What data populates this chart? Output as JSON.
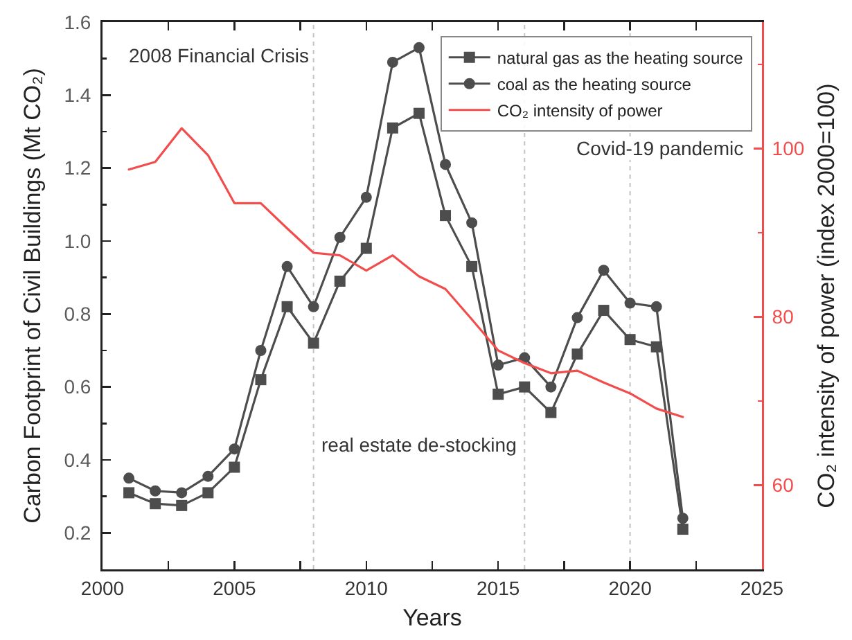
{
  "chart_data": {
    "type": "line",
    "xlabel": "Years",
    "ylabel": "Carbon Footprint of Civil Buildings (Mt CO₂)",
    "y2label": "CO₂ intensity of power (index 2000=100)",
    "x": [
      2001,
      2002,
      2003,
      2004,
      2005,
      2006,
      2007,
      2008,
      2009,
      2010,
      2011,
      2012,
      2013,
      2014,
      2015,
      2016,
      2017,
      2018,
      2019,
      2020,
      2021,
      2022
    ],
    "series": [
      {
        "name": "natural gas as the heating source",
        "color": "#4d4d4d",
        "marker": "square",
        "values": [
          0.31,
          0.28,
          0.275,
          0.31,
          0.38,
          0.62,
          0.82,
          0.72,
          0.89,
          0.98,
          1.31,
          1.35,
          1.07,
          0.93,
          0.58,
          0.6,
          0.53,
          0.69,
          0.81,
          0.73,
          0.71,
          0.21
        ]
      },
      {
        "name": "coal as the heating source",
        "color": "#4d4d4d",
        "marker": "circle",
        "values": [
          0.35,
          0.315,
          0.31,
          0.355,
          0.43,
          0.7,
          0.93,
          0.82,
          1.01,
          1.12,
          1.49,
          1.53,
          1.21,
          1.05,
          0.66,
          0.68,
          0.6,
          0.79,
          0.92,
          0.83,
          0.82,
          0.24
        ]
      },
      {
        "name": "CO₂ intensity of power",
        "color": "#f24d4d",
        "marker": "none",
        "axis": "y2",
        "values": [
          97.5,
          98.4,
          102.4,
          99.2,
          93.5,
          93.5,
          90.5,
          87.6,
          87.3,
          85.5,
          87.3,
          84.8,
          83.3,
          79.7,
          76,
          74.5,
          73.3,
          73.6,
          72.2,
          70.9,
          69.1,
          68.1
        ]
      }
    ],
    "xlim": [
      2000,
      2025
    ],
    "xticks": [
      2000,
      {
        "value": 2002.5,
        "label": null
      },
      2005,
      {
        "value": 2007.5,
        "label": null
      },
      2010,
      {
        "value": 2012.5,
        "label": null
      },
      2015,
      {
        "value": 2017.5,
        "label": null
      },
      2020,
      {
        "value": 2022.5,
        "label": null
      },
      2025
    ],
    "ylim": [
      0.1,
      1.6
    ],
    "yticks": [
      0.2,
      {
        "value": 0.3,
        "label": null
      },
      0.4,
      {
        "value": 0.5,
        "label": null
      },
      0.6,
      {
        "value": 0.7,
        "label": null
      },
      0.8,
      {
        "value": 0.9,
        "label": null
      },
      {
        "value": 1,
        "label": "1.0"
      },
      {
        "value": 1.1,
        "label": null
      },
      1.2,
      {
        "value": 1.3,
        "label": null
      },
      1.4,
      {
        "value": 1.5,
        "label": null
      },
      1.6
    ],
    "y2lim": [
      50,
      115
    ],
    "y2ticks": [
      60,
      {
        "value": 70,
        "label": null
      },
      80,
      {
        "value": 90,
        "label": null
      },
      100,
      {
        "value": 110,
        "label": null
      }
    ],
    "ref_lines": [
      {
        "axis": "x",
        "value": 2008,
        "label": "2008 Financial Crisis",
        "color": "#c4c4c4",
        "line_style": "dotted"
      },
      {
        "axis": "x",
        "value": 2016,
        "color": "#c4c4c4",
        "line_style": "dotted"
      },
      {
        "axis": "x",
        "value": 2020,
        "label": "Covid-19 pandemic",
        "color": "#c4c4c4",
        "line_style": "dotted"
      }
    ],
    "annotations": [
      "real estate de-stocking"
    ],
    "legend": "top right"
  }
}
